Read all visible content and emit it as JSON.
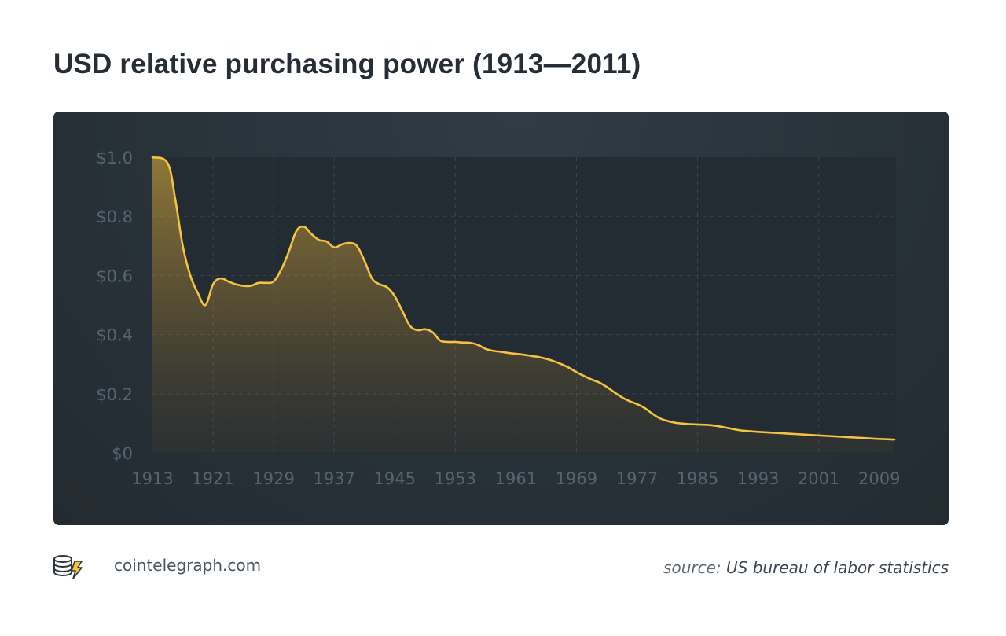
{
  "header": {
    "title": "USD relative purchasing power (1913—2011)"
  },
  "footer": {
    "site": "cointelegraph.com",
    "source_label": "source:",
    "source_value": "US bureau of labor statistics",
    "logo_icon": "cointelegraph-logo-icon"
  },
  "colors": {
    "line": "#f5c242",
    "panel_background": "#283239",
    "tick_text": "#566470"
  },
  "chart_data": {
    "type": "area",
    "title": "USD relative purchasing power (1913—2011)",
    "xlabel": "",
    "ylabel": "",
    "xlim": [
      1913,
      2011
    ],
    "ylim": [
      0,
      1.0
    ],
    "grid": true,
    "x_ticks": [
      1913,
      1921,
      1929,
      1937,
      1945,
      1953,
      1961,
      1969,
      1977,
      1985,
      1993,
      2001,
      2009
    ],
    "x_tick_labels": [
      "1913",
      "1921",
      "1929",
      "1937",
      "1945",
      "1953",
      "1961",
      "1969",
      "1977",
      "1985",
      "1993",
      "2001",
      "2009"
    ],
    "y_ticks": [
      0,
      0.2,
      0.4,
      0.6,
      0.8,
      1.0
    ],
    "y_tick_labels": [
      "$0",
      "$0.2",
      "$0.4",
      "$0.6",
      "$0.8",
      "$1.0"
    ],
    "series": [
      {
        "x": [
          1913,
          1915,
          1916,
          1917,
          1918,
          1919,
          1920,
          1921,
          1922,
          1923,
          1924,
          1925,
          1926,
          1927,
          1928,
          1929,
          1930,
          1931,
          1932,
          1933,
          1934,
          1935,
          1936,
          1937,
          1938,
          1939,
          1940,
          1941,
          1942,
          1943,
          1944,
          1945,
          1946,
          1947,
          1948,
          1949,
          1950,
          1951,
          1952,
          1953,
          1954,
          1955,
          1956,
          1957,
          1958,
          1959,
          1960,
          1961,
          1962,
          1963,
          1964,
          1965,
          1966,
          1967,
          1968,
          1969,
          1970,
          1971,
          1972,
          1973,
          1974,
          1975,
          1976,
          1977,
          1978,
          1979,
          1980,
          1981,
          1982,
          1983,
          1984,
          1985,
          1986,
          1987,
          1988,
          1989,
          1990,
          1991,
          1992,
          1993,
          1995,
          1997,
          1999,
          2001,
          2003,
          2005,
          2007,
          2009,
          2011
        ],
        "values": [
          1.0,
          0.98,
          0.86,
          0.7,
          0.6,
          0.54,
          0.5,
          0.57,
          0.59,
          0.58,
          0.57,
          0.565,
          0.565,
          0.575,
          0.575,
          0.58,
          0.62,
          0.68,
          0.75,
          0.765,
          0.74,
          0.72,
          0.715,
          0.695,
          0.705,
          0.71,
          0.7,
          0.65,
          0.59,
          0.57,
          0.56,
          0.53,
          0.48,
          0.43,
          0.415,
          0.418,
          0.408,
          0.38,
          0.375,
          0.375,
          0.373,
          0.372,
          0.365,
          0.352,
          0.345,
          0.342,
          0.338,
          0.335,
          0.332,
          0.328,
          0.324,
          0.318,
          0.31,
          0.3,
          0.288,
          0.273,
          0.26,
          0.248,
          0.238,
          0.223,
          0.205,
          0.188,
          0.175,
          0.165,
          0.152,
          0.133,
          0.117,
          0.108,
          0.102,
          0.099,
          0.097,
          0.096,
          0.095,
          0.093,
          0.089,
          0.084,
          0.079,
          0.075,
          0.073,
          0.071,
          0.068,
          0.065,
          0.062,
          0.059,
          0.056,
          0.053,
          0.05,
          0.047,
          0.045
        ]
      }
    ]
  }
}
